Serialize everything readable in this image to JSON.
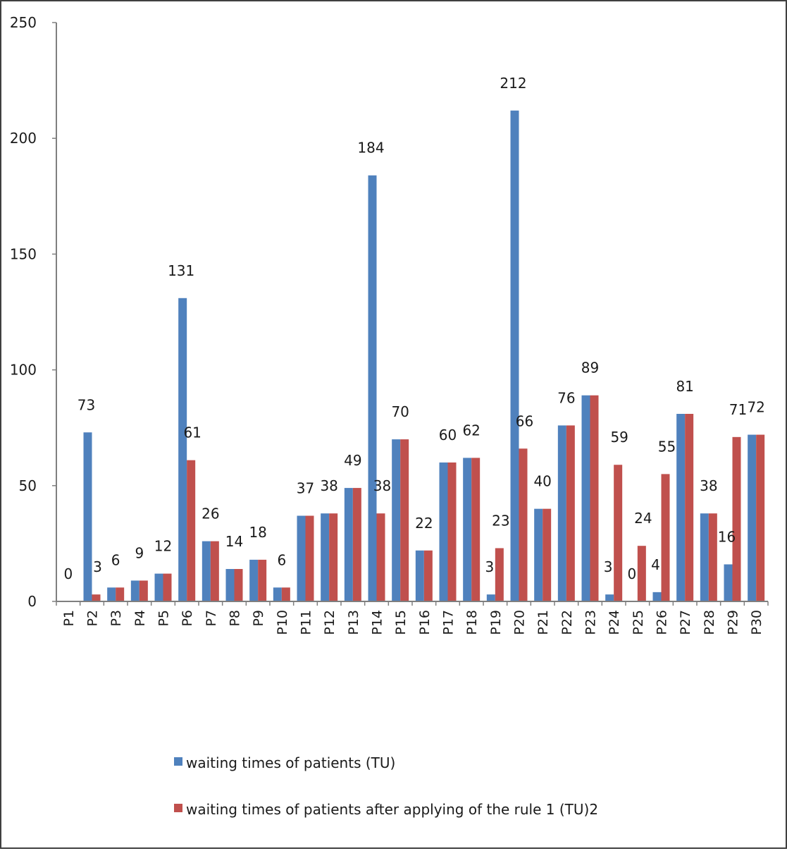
{
  "chart_data": {
    "type": "bar",
    "title": "",
    "xlabel": "",
    "ylabel": "",
    "ylim": [
      0,
      250
    ],
    "yticks": [
      0,
      50,
      100,
      150,
      200,
      250
    ],
    "grid": false,
    "legend_position": "bottom",
    "categories": [
      "P1",
      "P2",
      "P3",
      "P4",
      "P5",
      "P6",
      "P7",
      "P8",
      "P9",
      "P10",
      "P11",
      "P12",
      "P13",
      "P14",
      "P15",
      "P16",
      "P17",
      "P18",
      "P19",
      "P20",
      "P21",
      "P22",
      "P23",
      "P24",
      "P25",
      "P26",
      "P27",
      "P28",
      "P29",
      "P30"
    ],
    "series": [
      {
        "name": "waiting times of patients (TU)",
        "color": "#4f81bd",
        "values": [
          0,
          73,
          6,
          9,
          12,
          131,
          26,
          14,
          18,
          6,
          37,
          38,
          49,
          184,
          70,
          22,
          60,
          62,
          3,
          212,
          40,
          76,
          89,
          3,
          0,
          4,
          81,
          38,
          16,
          72
        ]
      },
      {
        "name": "waiting times of patients after applying of the rule 1 (TU)2",
        "color": "#c0504d",
        "values": [
          0,
          3,
          6,
          9,
          12,
          61,
          26,
          14,
          18,
          6,
          37,
          38,
          49,
          38,
          70,
          22,
          60,
          62,
          23,
          66,
          40,
          76,
          89,
          59,
          24,
          55,
          81,
          38,
          71,
          72
        ]
      }
    ],
    "data_labels": [
      "0",
      "73",
      "3",
      "6",
      "9",
      "12",
      "131",
      "61",
      "26",
      "14",
      "18",
      "6",
      "37",
      "38",
      "49",
      "184",
      "38",
      "70",
      "22",
      "60",
      "62",
      "3",
      "23",
      "212",
      "66",
      "40",
      "76",
      "89",
      "3",
      "59",
      "0",
      "24",
      "4",
      "55",
      "81",
      "38",
      "16",
      "71",
      "72"
    ]
  }
}
